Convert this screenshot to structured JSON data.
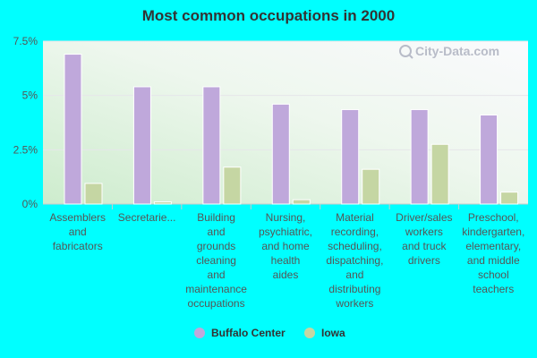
{
  "chart_data": {
    "type": "bar",
    "title": "Most common occupations in 2000",
    "categories": [
      [
        "Assemblers",
        "and",
        "fabricators"
      ],
      [
        "Secretarie..."
      ],
      [
        "Building",
        "and",
        "grounds",
        "cleaning",
        "and",
        "maintenance",
        "occupations"
      ],
      [
        "Nursing,",
        "psychiatric,",
        "and home",
        "health",
        "aides"
      ],
      [
        "Material",
        "recording,",
        "scheduling,",
        "dispatching,",
        "and",
        "distributing",
        "workers"
      ],
      [
        "Driver/sales",
        "workers",
        "and truck",
        "drivers"
      ],
      [
        "Preschool,",
        "kindergarten,",
        "elementary,",
        "and middle",
        "school",
        "teachers"
      ]
    ],
    "series": [
      {
        "name": "Buffalo Center",
        "color": "#bfa8db",
        "values": [
          6.9,
          5.4,
          5.4,
          4.6,
          4.35,
          4.35,
          4.1
        ]
      },
      {
        "name": "Iowa",
        "color": "#c5d6a3",
        "values": [
          0.95,
          0.1,
          1.7,
          0.2,
          1.6,
          2.75,
          0.55
        ]
      }
    ],
    "ylim": [
      0,
      7.5
    ],
    "yticks": [
      {
        "value": 0,
        "label": "0%"
      },
      {
        "value": 2.5,
        "label": "2.5%"
      },
      {
        "value": 5,
        "label": "5%"
      },
      {
        "value": 7.5,
        "label": "7.5%"
      }
    ],
    "grid": true,
    "legend_position": "bottom-center",
    "xlabel": "",
    "ylabel": ""
  },
  "watermark": {
    "text": "City-Data.com",
    "icon": "magnifier-icon"
  }
}
